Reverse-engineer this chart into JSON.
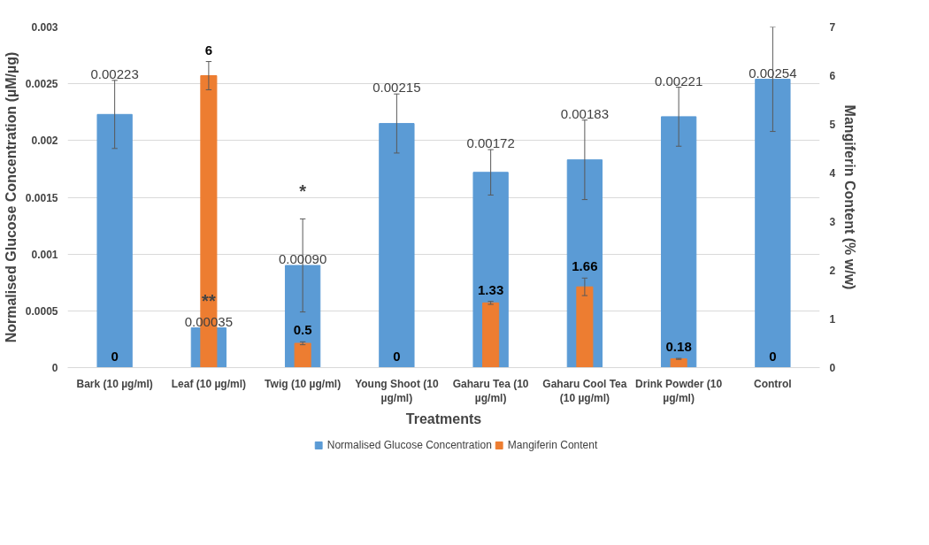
{
  "chart_data": {
    "type": "bar",
    "xlabel": "Treatments",
    "ylabel": "Normalised Glucose Concentration (µM/µg)",
    "y2label": "Mangiferin Content (% w/w)",
    "categories": [
      "Bark (10 µg/ml)",
      "Leaf (10 µg/ml)",
      "Twig (10 µg/ml)",
      "Young Shoot (10 µg/ml)",
      "Gaharu Tea (10 µg/ml)",
      "Gaharu Cool Tea (10 µg/ml)",
      "Drink Powder (10 µg/ml)",
      "Control"
    ],
    "series": [
      {
        "name": "Normalised Glucose Concentration",
        "color": "#5b9bd5",
        "values": [
          0.00223,
          0.00035,
          0.0009,
          0.00215,
          0.00172,
          0.00183,
          0.00221,
          0.00254
        ],
        "errors": [
          0.0003,
          null,
          0.00041,
          0.00026,
          0.0002,
          0.00035,
          0.00026,
          0.00046
        ],
        "value_labels": [
          "0.00223",
          "0.00035",
          "0.00090",
          "0.00215",
          "0.00172",
          "0.00183",
          "0.00221",
          "0.00254"
        ]
      },
      {
        "name": "Mangiferin Content",
        "color": "#ed7d31",
        "axis": "y2",
        "values": [
          0,
          6,
          0.5,
          0,
          1.33,
          1.66,
          0.18,
          0
        ],
        "errors": [
          null,
          0.29,
          0.03,
          null,
          0.03,
          0.18,
          0.01,
          null
        ],
        "value_labels": [
          "0",
          "6",
          "0.5",
          "0",
          "1.33",
          "1.66",
          "0.18",
          "0"
        ]
      }
    ],
    "ylim": [
      0,
      0.003
    ],
    "yticks": [
      0,
      0.0005,
      0.001,
      0.0015,
      0.002,
      0.0025,
      0.003
    ],
    "y2lim": [
      0,
      7
    ],
    "y2ticks": [
      0,
      1,
      2,
      3,
      4,
      5,
      6,
      7
    ],
    "annotations": [
      {
        "text": "**",
        "x": "Leaf (10 µg/ml)",
        "y": 0.00035
      },
      {
        "text": "*",
        "x": "Twig (10 µg/ml)",
        "y": 0.00131
      }
    ],
    "grid": "y",
    "legend": "bottom"
  }
}
